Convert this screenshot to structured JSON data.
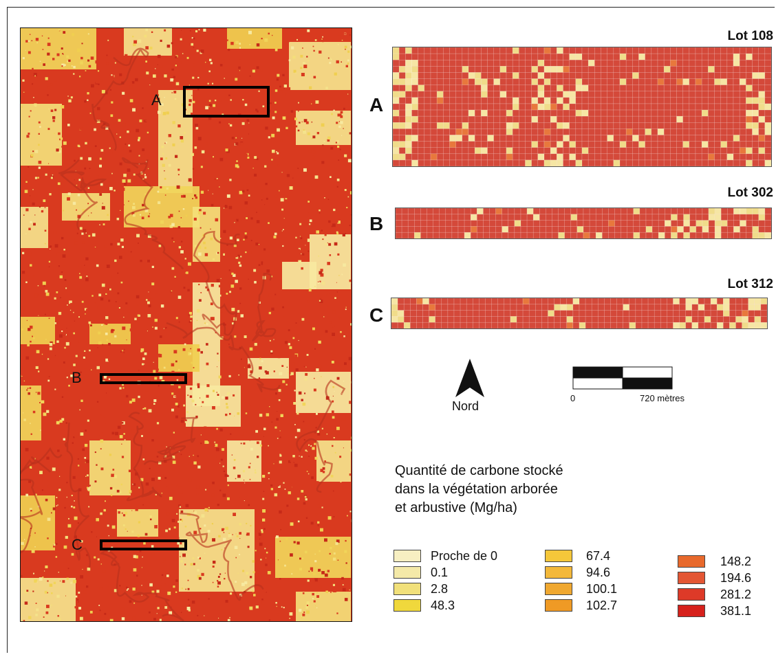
{
  "main_map": {
    "markers": [
      {
        "letter": "A"
      },
      {
        "letter": "B"
      },
      {
        "letter": "C"
      }
    ]
  },
  "insets": [
    {
      "letter": "A",
      "lot": "Lot 108"
    },
    {
      "letter": "B",
      "lot": "Lot 302"
    },
    {
      "letter": "C",
      "lot": "Lot 312"
    }
  ],
  "north_arrow": {
    "label": "Nord"
  },
  "scale_bar": {
    "start_label": "0",
    "end_label": "720 mètres"
  },
  "legend": {
    "title_lines": [
      "Quantité de carbone stocké",
      "dans la végétation arborée",
      "et arbustive (Mg/ha)"
    ],
    "items": [
      {
        "label": "Proche de 0",
        "color": "#f7efc2"
      },
      {
        "label": "0.1",
        "color": "#f4e9a8"
      },
      {
        "label": "2.8",
        "color": "#f1e07a"
      },
      {
        "label": "48.3",
        "color": "#f0d83c"
      },
      {
        "label": "67.4",
        "color": "#f5c73a"
      },
      {
        "label": "94.6",
        "color": "#f3b83a"
      },
      {
        "label": "100.1",
        "color": "#f0a830"
      },
      {
        "label": "102.7",
        "color": "#ef9a25"
      },
      {
        "label": "148.2",
        "color": "#e8692c"
      },
      {
        "label": "194.6",
        "color": "#e35634"
      },
      {
        "label": "281.2",
        "color": "#dd3a28"
      },
      {
        "label": "381.1",
        "color": "#d6211c"
      }
    ]
  },
  "colors": {
    "high_carbon": "#d93a1f",
    "dark_red": "#c62a18",
    "low_carbon": "#f4df7a",
    "pale": "#f7efc2",
    "strip_red": "#d4493a"
  }
}
